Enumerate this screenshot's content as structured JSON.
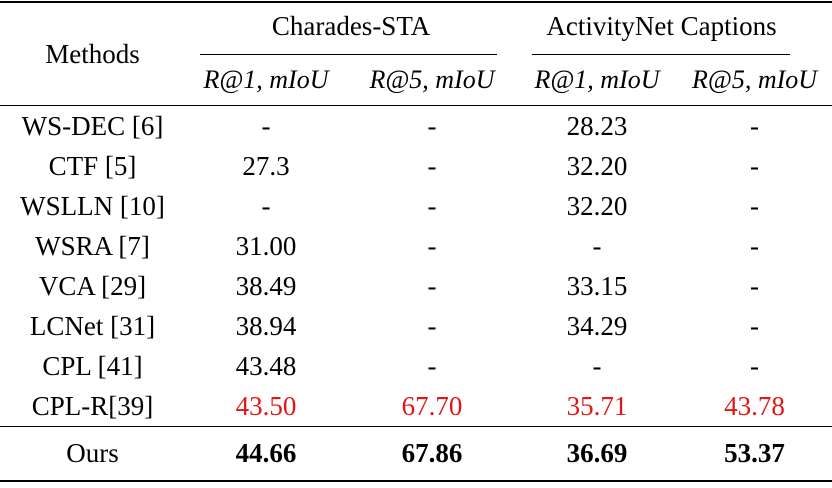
{
  "table": {
    "header": {
      "methods_label": "Methods",
      "groups": [
        {
          "label": "Charades-STA",
          "subcolumns": [
            "R@1, mIoU",
            "R@5, mIoU"
          ]
        },
        {
          "label": "ActivityNet Captions",
          "subcolumns": [
            "R@1, mIoU",
            "R@5, mIoU"
          ]
        }
      ]
    },
    "rows": [
      {
        "method": "WS-DEC [6]",
        "values": [
          "-",
          "-",
          "28.23",
          "-"
        ],
        "highlight": false
      },
      {
        "method": "CTF [5]",
        "values": [
          "27.3",
          "-",
          "32.20",
          "-"
        ],
        "highlight": false
      },
      {
        "method": "WSLLN [10]",
        "values": [
          "-",
          "-",
          "32.20",
          "-"
        ],
        "highlight": false
      },
      {
        "method": "WSRA [7]",
        "values": [
          "31.00",
          "-",
          "-",
          "-"
        ],
        "highlight": false
      },
      {
        "method": "VCA [29]",
        "values": [
          "38.49",
          "-",
          "33.15",
          "-"
        ],
        "highlight": false
      },
      {
        "method": "LCNet [31]",
        "values": [
          "38.94",
          "-",
          "34.29",
          "-"
        ],
        "highlight": false
      },
      {
        "method": "CPL [41]",
        "values": [
          "43.48",
          "-",
          "-",
          "-"
        ],
        "highlight": false
      },
      {
        "method": "CPL-R[39]",
        "values": [
          "43.50",
          "67.70",
          "35.71",
          "43.78"
        ],
        "highlight": true
      }
    ],
    "footer_row": {
      "method": "Ours",
      "values": [
        "44.66",
        "67.86",
        "36.69",
        "53.37"
      ],
      "bold": true
    },
    "colors": {
      "highlight_red": "#e31515",
      "text": "#000000",
      "rule": "#000000",
      "background": "#ffffff"
    }
  }
}
